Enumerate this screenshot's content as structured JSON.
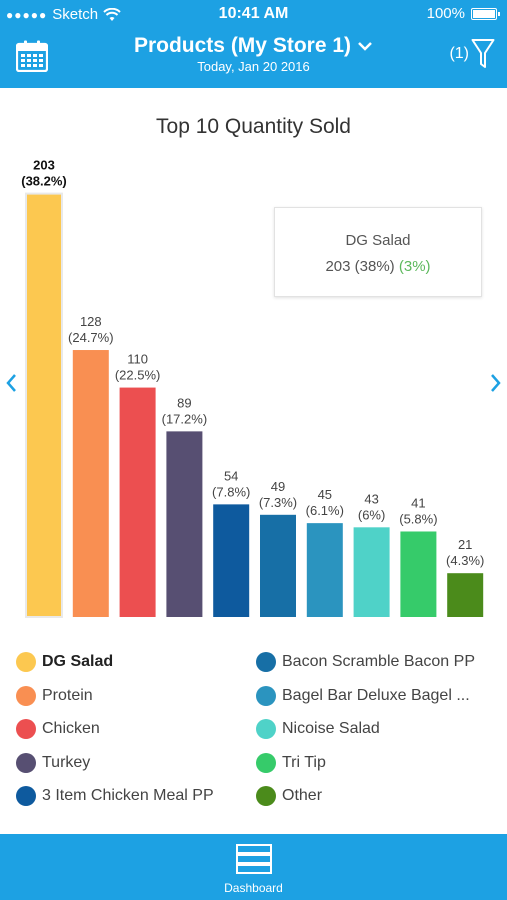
{
  "status_bar": {
    "carrier": "Sketch",
    "time": "10:41 AM",
    "battery": "100%"
  },
  "header": {
    "title": "Products (My Store 1)",
    "subtitle": "Today, Jan 20 2016",
    "filter_count": "(1)",
    "calendar_icon": "calendar-icon",
    "filter_icon": "filter-icon",
    "color": "#1da1e3"
  },
  "tooltip": {
    "name": "DG Salad",
    "value": "203 (38%)",
    "change": "(3%)"
  },
  "tabbar": {
    "label": "Dashboard",
    "icon": "dashboard-icon"
  },
  "chart_data": {
    "type": "bar",
    "title": "Top 10 Quantity Sold",
    "categories": [
      "DG Salad",
      "Protein",
      "Chicken",
      "Turkey",
      "3 Item Chicken Meal PP",
      "Bacon Scramble Bacon PP",
      "Bagel Bar Deluxe Bagel ...",
      "Nicoise Salad",
      "Tri Tip",
      "Other"
    ],
    "values": [
      203,
      128,
      110,
      89,
      54,
      49,
      45,
      43,
      41,
      21
    ],
    "value_labels": [
      "203",
      "128",
      "110",
      "89",
      "54",
      "49",
      "45",
      "43",
      "41",
      "21"
    ],
    "percent_labels": [
      "(38.2%)",
      "(24.7%)",
      "(22.5%)",
      "(17.2%)",
      "(7.8%)",
      "(7.3%)",
      "(6.1%)",
      "(6%)",
      "(5.8%)",
      "(4.3%)"
    ],
    "colors": [
      "#fcc850",
      "#f98f52",
      "#ec4f50",
      "#574f72",
      "#0e5a9e",
      "#176fa6",
      "#2b94bf",
      "#4fd2c8",
      "#36cb6a",
      "#4b8b1b"
    ],
    "selected_index": 0,
    "ylim": [
      0,
      210
    ]
  }
}
